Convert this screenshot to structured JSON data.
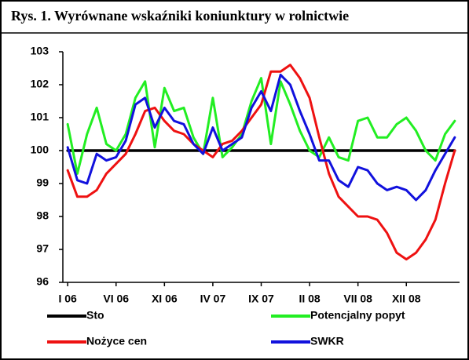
{
  "chart_data": {
    "type": "line",
    "title": "Rys. 1. Wyrównane wskaźniki koniunktury w rolnictwie",
    "categories": [
      "I 06",
      null,
      null,
      null,
      null,
      "VI 06",
      null,
      null,
      null,
      null,
      "XI 06",
      null,
      null,
      null,
      null,
      "IV 07",
      null,
      null,
      null,
      null,
      "IX 07",
      null,
      null,
      null,
      null,
      "II 08",
      null,
      null,
      null,
      null,
      "VII 08",
      null,
      null,
      null,
      null,
      "XII 08",
      null,
      null,
      null,
      null,
      null
    ],
    "ylim": [
      96,
      103
    ],
    "yticks": [
      96,
      97,
      98,
      99,
      100,
      101,
      102,
      103
    ],
    "series": [
      {
        "name": "Sto",
        "color": "#000000",
        "values": [
          100,
          100,
          100,
          100,
          100,
          100,
          100,
          100,
          100,
          100,
          100,
          100,
          100,
          100,
          100,
          100,
          100,
          100,
          100,
          100,
          100,
          100,
          100,
          100,
          100,
          100,
          100,
          100,
          100,
          100,
          100,
          100,
          100,
          100,
          100,
          100,
          100,
          100,
          100,
          100,
          100
        ]
      },
      {
        "name": "Potencjalny popyt",
        "color": "#22ee22",
        "values": [
          100.8,
          99.3,
          100.5,
          101.3,
          100.2,
          100.0,
          100.5,
          101.6,
          102.1,
          100.1,
          101.9,
          101.2,
          101.3,
          100.4,
          99.9,
          101.6,
          99.8,
          100.1,
          100.5,
          101.5,
          102.2,
          100.2,
          102.1,
          101.4,
          100.6,
          100.0,
          99.8,
          100.4,
          99.8,
          99.7,
          100.9,
          101.0,
          100.4,
          100.4,
          100.8,
          101.0,
          100.6,
          100.0,
          99.7,
          100.5,
          100.9
        ]
      },
      {
        "name": "Nożyce cen",
        "color": "#ee1111",
        "values": [
          99.4,
          98.6,
          98.6,
          98.8,
          99.3,
          99.6,
          99.9,
          100.5,
          101.2,
          101.3,
          100.9,
          100.6,
          100.5,
          100.2,
          100.0,
          99.8,
          100.2,
          100.3,
          100.6,
          101.0,
          101.4,
          102.4,
          102.4,
          102.6,
          102.2,
          101.6,
          100.4,
          99.3,
          98.6,
          98.3,
          98.0,
          98.0,
          97.9,
          97.5,
          96.9,
          96.7,
          96.9,
          97.3,
          97.9,
          99.0,
          100.0
        ]
      },
      {
        "name": "SWKR",
        "color": "#1111dd",
        "values": [
          100.1,
          99.1,
          99.0,
          99.9,
          99.7,
          99.8,
          100.3,
          101.4,
          101.6,
          100.7,
          101.3,
          100.9,
          100.8,
          100.2,
          99.9,
          100.7,
          100.0,
          100.2,
          100.4,
          101.3,
          101.8,
          101.2,
          102.3,
          102.0,
          101.2,
          100.5,
          99.7,
          99.7,
          99.1,
          98.9,
          99.5,
          99.4,
          99.0,
          98.8,
          98.9,
          98.8,
          98.5,
          98.8,
          99.4,
          99.9,
          100.4
        ]
      }
    ]
  }
}
